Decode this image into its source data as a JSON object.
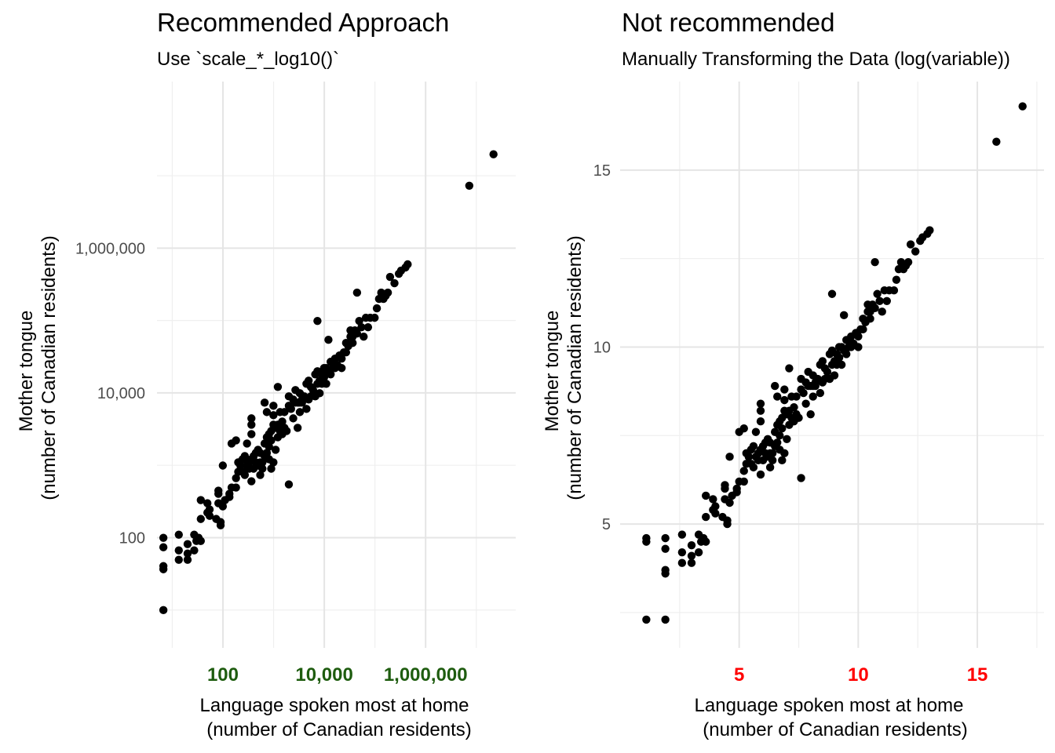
{
  "chart_data": [
    {
      "type": "scatter",
      "title": "Recommended Approach",
      "subtitle": "Use `scale_*_log10()`",
      "xlabel_line1": "Language spoken most at home",
      "xlabel_line2": "(number of Canadian residents)",
      "ylabel_line1": "Mother tongue",
      "ylabel_line2": "(number of Canadian residents)",
      "x_scale": "log10",
      "y_scale": "log10",
      "xlim": [
        5,
        60000000
      ],
      "ylim": [
        3,
        200000000
      ],
      "x_ticks": [
        100,
        10000,
        1000000
      ],
      "x_tick_labels": [
        "100",
        "10,000",
        "1,000,000"
      ],
      "x_tick_color": "#1e5c0f",
      "y_ticks": [
        100,
        10000,
        1000000
      ],
      "y_tick_labels": [
        "100",
        "10,000",
        "1,000,000"
      ],
      "grid": true,
      "point_color": "#000000"
    },
    {
      "type": "scatter",
      "title": "Not recommended",
      "subtitle": "Manually Transforming the Data (log(variable))",
      "xlabel_line1": "Language spoken most at home",
      "xlabel_line2": "(number of Canadian residents)",
      "ylabel_line1": "Mother tongue",
      "ylabel_line2": "(number of Canadian residents)",
      "x_scale": "linear",
      "y_scale": "linear",
      "xlim": [
        0,
        17.8
      ],
      "ylim": [
        1.5,
        17.5
      ],
      "x_ticks": [
        5,
        10,
        15
      ],
      "x_tick_labels": [
        "5",
        "10",
        "15"
      ],
      "x_tick_color": "#ff0000",
      "y_ticks": [
        5,
        10,
        15
      ],
      "y_tick_labels": [
        "5",
        "10",
        "15"
      ],
      "grid": true,
      "point_color": "#000000"
    }
  ],
  "points_ln": [
    [
      1.1,
      2.3
    ],
    [
      1.9,
      2.3
    ],
    [
      1.1,
      4.5
    ],
    [
      1.1,
      4.6
    ],
    [
      1.9,
      4.6
    ],
    [
      1.9,
      4.3
    ],
    [
      1.9,
      3.7
    ],
    [
      1.9,
      3.6
    ],
    [
      2.6,
      4.7
    ],
    [
      2.6,
      4.2
    ],
    [
      2.6,
      3.9
    ],
    [
      3.0,
      4.4
    ],
    [
      3.0,
      4.1
    ],
    [
      3.0,
      3.9
    ],
    [
      3.3,
      4.2
    ],
    [
      3.3,
      4.7
    ],
    [
      3.4,
      4.5
    ],
    [
      3.5,
      4.6
    ],
    [
      3.6,
      4.5
    ],
    [
      3.6,
      5.2
    ],
    [
      3.6,
      5.8
    ],
    [
      3.9,
      5.7
    ],
    [
      4.0,
      5.5
    ],
    [
      4.0,
      5.3
    ],
    [
      3.9,
      5.4
    ],
    [
      4.3,
      5.2
    ],
    [
      4.5,
      5.0
    ],
    [
      4.5,
      5.1
    ],
    [
      4.4,
      5.7
    ],
    [
      4.4,
      6.0
    ],
    [
      4.4,
      6.1
    ],
    [
      4.6,
      5.6
    ],
    [
      4.7,
      5.8
    ],
    [
      4.9,
      6.0
    ],
    [
      4.6,
      6.9
    ],
    [
      4.9,
      5.9
    ],
    [
      5.0,
      6.2
    ],
    [
      5.2,
      6.2
    ],
    [
      5.2,
      6.5
    ],
    [
      5.3,
      6.7
    ],
    [
      5.3,
      7.0
    ],
    [
      5.5,
      6.7
    ],
    [
      5.5,
      7.1
    ],
    [
      5.6,
      6.6
    ],
    [
      5.6,
      7.2
    ],
    [
      5.7,
      7.6
    ],
    [
      5.7,
      6.9
    ],
    [
      5.8,
      6.8
    ],
    [
      5.8,
      7.0
    ],
    [
      5.9,
      7.1
    ],
    [
      5.9,
      6.4
    ],
    [
      5.9,
      7.9
    ],
    [
      6.0,
      6.8
    ],
    [
      6.0,
      7.2
    ],
    [
      6.1,
      7.0
    ],
    [
      6.1,
      7.3
    ],
    [
      6.2,
      6.9
    ],
    [
      6.3,
      7.0
    ],
    [
      6.2,
      7.4
    ],
    [
      6.3,
      6.6
    ],
    [
      6.4,
      6.8
    ],
    [
      6.4,
      7.0
    ],
    [
      5.2,
      7.7
    ],
    [
      5.9,
      8.4
    ],
    [
      5.9,
      8.2
    ],
    [
      6.5,
      7.2
    ],
    [
      6.5,
      7.6
    ],
    [
      6.6,
      7.3
    ],
    [
      6.6,
      7.8
    ],
    [
      6.7,
      7.9
    ],
    [
      6.7,
      7.5
    ],
    [
      6.8,
      7.7
    ],
    [
      6.8,
      8.0
    ],
    [
      6.9,
      8.2
    ],
    [
      6.9,
      8.8
    ],
    [
      6.9,
      8.5
    ],
    [
      7.0,
      8.1
    ],
    [
      7.0,
      7.4
    ],
    [
      7.1,
      8.2
    ],
    [
      7.1,
      7.8
    ],
    [
      7.1,
      9.4
    ],
    [
      7.2,
      8.6
    ],
    [
      7.2,
      8.0
    ],
    [
      7.3,
      8.3
    ],
    [
      7.4,
      8.1
    ],
    [
      7.4,
      8.6
    ],
    [
      7.5,
      8.0
    ],
    [
      7.6,
      8.8
    ],
    [
      7.6,
      9.1
    ],
    [
      7.7,
      8.7
    ],
    [
      7.8,
      9.0
    ],
    [
      7.8,
      8.4
    ],
    [
      7.9,
      9.3
    ],
    [
      7.9,
      8.9
    ],
    [
      8.0,
      8.9
    ],
    [
      8.1,
      9.2
    ],
    [
      8.1,
      8.6
    ],
    [
      8.2,
      8.9
    ],
    [
      8.2,
      9.0
    ],
    [
      8.3,
      9.1
    ],
    [
      8.4,
      9.5
    ],
    [
      8.4,
      8.7
    ],
    [
      8.5,
      9.0
    ],
    [
      8.5,
      9.6
    ],
    [
      8.6,
      9.4
    ],
    [
      8.6,
      9.1
    ],
    [
      8.7,
      9.3
    ],
    [
      8.8,
      9.8
    ],
    [
      8.8,
      9.1
    ],
    [
      8.9,
      9.5
    ],
    [
      8.9,
      9.9
    ],
    [
      9.0,
      9.2
    ],
    [
      9.0,
      9.6
    ],
    [
      9.1,
      9.5
    ],
    [
      9.1,
      9.8
    ],
    [
      9.2,
      9.7
    ],
    [
      9.3,
      10.0
    ],
    [
      9.3,
      9.5
    ],
    [
      9.4,
      9.9
    ],
    [
      9.5,
      10.2
    ],
    [
      9.5,
      9.8
    ],
    [
      9.6,
      10.0
    ],
    [
      9.7,
      10.3
    ],
    [
      9.7,
      10.0
    ],
    [
      9.8,
      10.1
    ],
    [
      9.9,
      10.4
    ],
    [
      10.0,
      10.3
    ],
    [
      10.0,
      10.0
    ],
    [
      10.1,
      10.5
    ],
    [
      10.2,
      10.8
    ],
    [
      10.2,
      10.5
    ],
    [
      10.3,
      10.7
    ],
    [
      10.4,
      11.0
    ],
    [
      10.5,
      10.8
    ],
    [
      10.5,
      11.0
    ],
    [
      10.6,
      11.2
    ],
    [
      10.7,
      11.1
    ],
    [
      10.8,
      11.5
    ],
    [
      10.9,
      11.3
    ],
    [
      11.0,
      11.0
    ],
    [
      11.1,
      11.6
    ],
    [
      11.2,
      11.3
    ],
    [
      11.3,
      11.6
    ],
    [
      11.5,
      11.6
    ],
    [
      11.6,
      11.9
    ],
    [
      11.7,
      12.2
    ],
    [
      11.8,
      12.4
    ],
    [
      11.9,
      12.2
    ],
    [
      12.0,
      12.3
    ],
    [
      12.1,
      12.4
    ],
    [
      12.2,
      12.9
    ],
    [
      12.4,
      12.7
    ],
    [
      12.6,
      13.0
    ],
    [
      12.7,
      13.1
    ],
    [
      12.9,
      13.2
    ],
    [
      13.0,
      13.3
    ],
    [
      9.2,
      10.0
    ],
    [
      8.0,
      8.1
    ],
    [
      7.3,
      7.9
    ],
    [
      6.6,
      8.6
    ],
    [
      8.9,
      11.5
    ],
    [
      6.3,
      7.3
    ],
    [
      6.8,
      6.8
    ],
    [
      6.9,
      7.0
    ],
    [
      10.7,
      12.4
    ],
    [
      9.4,
      10.9
    ],
    [
      7.6,
      6.3
    ],
    [
      6.5,
      8.9
    ],
    [
      5.0,
      7.6
    ],
    [
      5.4,
      6.9
    ],
    [
      6.7,
      7.1
    ],
    [
      8.1,
      8.9
    ],
    [
      9.7,
      10.1
    ],
    [
      10.4,
      11.2
    ],
    [
      15.8,
      15.8
    ],
    [
      16.9,
      16.8
    ]
  ]
}
